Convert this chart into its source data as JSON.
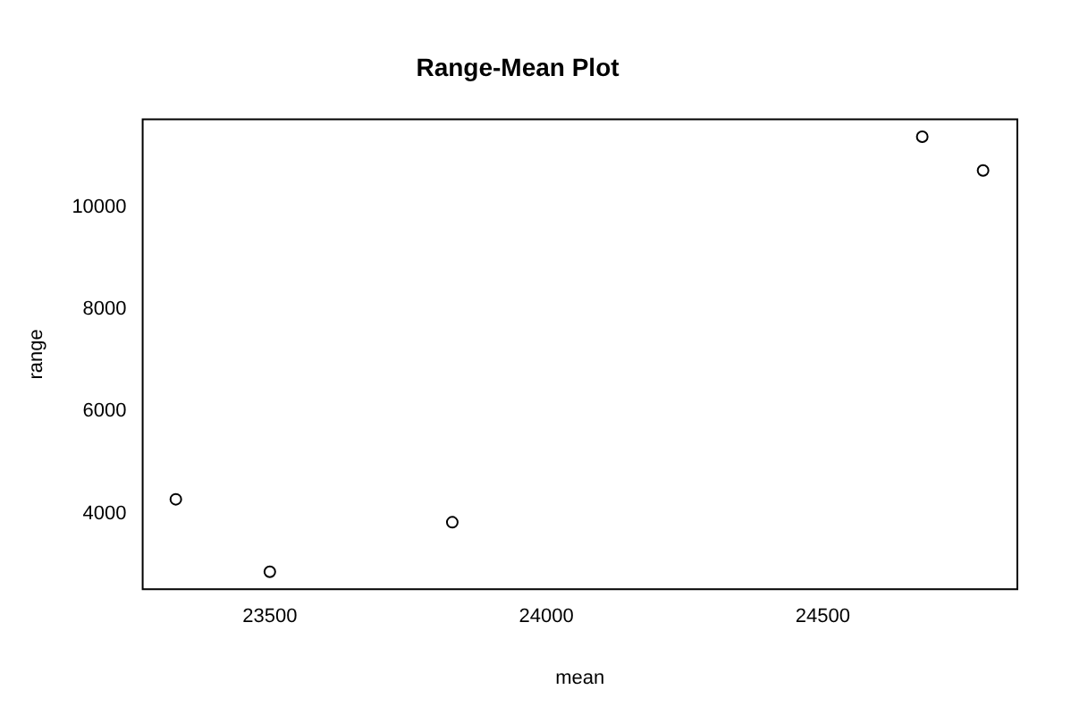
{
  "chart_data": {
    "type": "scatter",
    "title": "Range-Mean Plot",
    "xlabel": "mean",
    "ylabel": "range",
    "x": [
      23330,
      23500,
      23830,
      24680,
      24790
    ],
    "series": [
      {
        "color": "#000000",
        "values": [
          4280,
          2860,
          3830,
          11380,
          10720
        ]
      }
    ],
    "xlim": [
      23270,
      24852
    ],
    "ylim": [
      2520,
      11720
    ],
    "xticks": [
      23500,
      24000,
      24500
    ],
    "yticks": [
      4000,
      6000,
      8000,
      10000
    ],
    "grid": false,
    "legend": false,
    "marker": "circle"
  }
}
